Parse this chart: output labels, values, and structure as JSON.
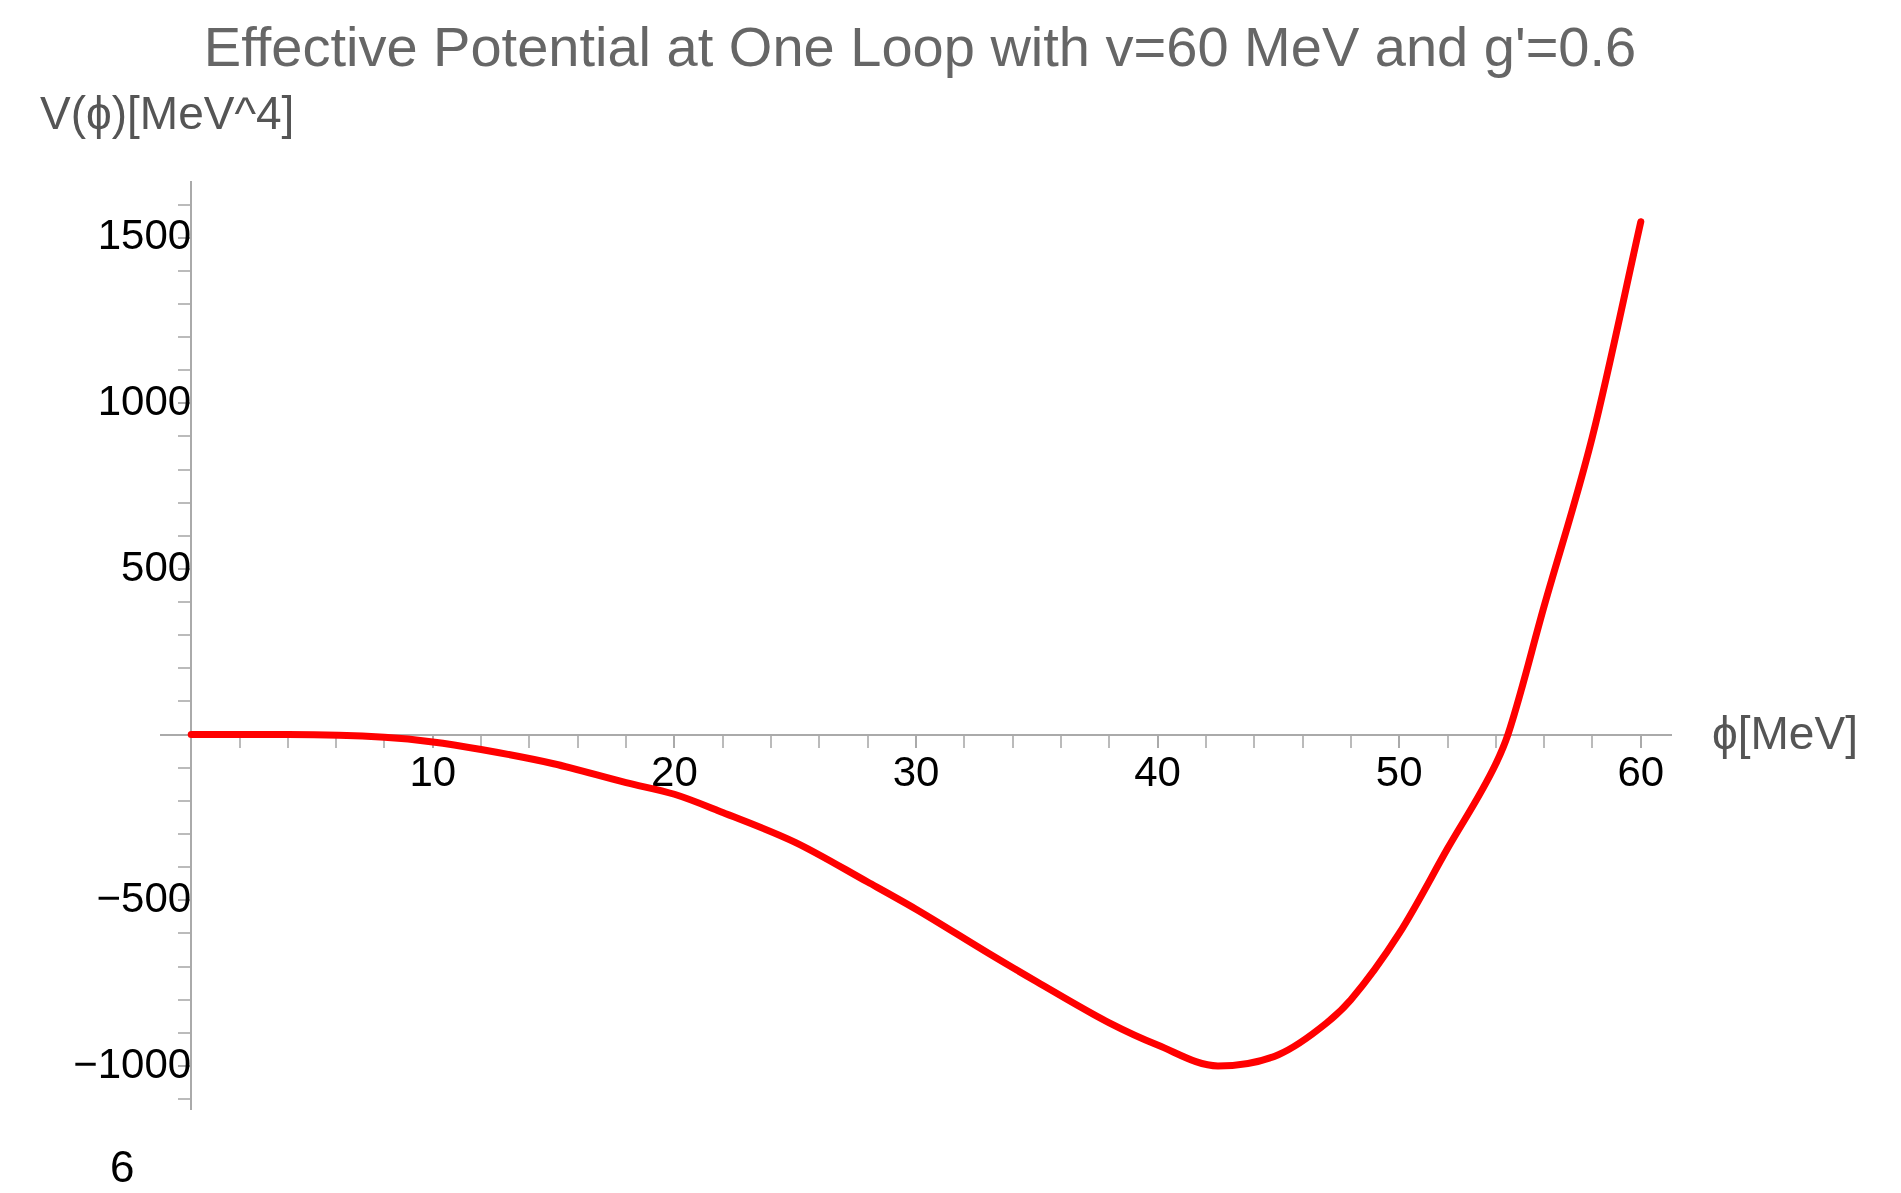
{
  "chart_data": {
    "type": "line",
    "title": "Effective Potential at One Loop with v=60 MeV and g'=0.6",
    "xlabel": "ϕ[MeV]",
    "ylabel": "V(ϕ)[MeV^4]",
    "annotations": [
      "6"
    ],
    "x": [
      0,
      4,
      8,
      10,
      12,
      15,
      18,
      20,
      22,
      25,
      28,
      30,
      33,
      35,
      38,
      40,
      42.5,
      45,
      47,
      48,
      50,
      52,
      54,
      54.5,
      56,
      58,
      60
    ],
    "series": [
      {
        "color": "#ff0000",
        "values": [
          0,
          0,
          -8,
          -22,
          -45,
          -88,
          -145,
          -180,
          -235,
          -325,
          -445,
          -527,
          -660,
          -746,
          -870,
          -937,
          -1000,
          -966,
          -870,
          -800,
          -600,
          -344,
          -88,
          0,
          388,
          900,
          1548
        ]
      }
    ],
    "xlim": [
      -1.25,
      61.25
    ],
    "ylim": [
      -1130,
      1668
    ],
    "xticks": [
      10,
      20,
      30,
      40,
      50,
      60,
      {
        "value": 2,
        "label": null
      },
      {
        "value": 4,
        "label": null
      },
      {
        "value": 6,
        "label": null
      },
      {
        "value": 8,
        "label": null
      },
      {
        "value": 12,
        "label": null
      },
      {
        "value": 14,
        "label": null
      },
      {
        "value": 16,
        "label": null
      },
      {
        "value": 18,
        "label": null
      },
      {
        "value": 22,
        "label": null
      },
      {
        "value": 24,
        "label": null
      },
      {
        "value": 26,
        "label": null
      },
      {
        "value": 28,
        "label": null
      },
      {
        "value": 32,
        "label": null
      },
      {
        "value": 34,
        "label": null
      },
      {
        "value": 36,
        "label": null
      },
      {
        "value": 38,
        "label": null
      },
      {
        "value": 42,
        "label": null
      },
      {
        "value": 44,
        "label": null
      },
      {
        "value": 46,
        "label": null
      },
      {
        "value": 48,
        "label": null
      },
      {
        "value": 52,
        "label": null
      },
      {
        "value": 54,
        "label": null
      },
      {
        "value": 56,
        "label": null
      },
      {
        "value": 58,
        "label": null
      }
    ],
    "yticks": [
      -1000,
      -500,
      500,
      1000,
      1500,
      {
        "value": -1100,
        "label": null
      },
      {
        "value": -900,
        "label": null
      },
      {
        "value": -800,
        "label": null
      },
      {
        "value": -700,
        "label": null
      },
      {
        "value": -600,
        "label": null
      },
      {
        "value": -400,
        "label": null
      },
      {
        "value": -300,
        "label": null
      },
      {
        "value": -200,
        "label": null
      },
      {
        "value": -100,
        "label": null
      },
      {
        "value": 100,
        "label": null
      },
      {
        "value": 200,
        "label": null
      },
      {
        "value": 300,
        "label": null
      },
      {
        "value": 400,
        "label": null
      },
      {
        "value": 600,
        "label": null
      },
      {
        "value": 700,
        "label": null
      },
      {
        "value": 800,
        "label": null
      },
      {
        "value": 900,
        "label": null
      },
      {
        "value": 1100,
        "label": null
      },
      {
        "value": 1200,
        "label": null
      },
      {
        "value": 1300,
        "label": null
      },
      {
        "value": 1400,
        "label": null
      },
      {
        "value": 1600,
        "label": null
      }
    ],
    "grid": false,
    "legend": false,
    "marker": "none",
    "line_style": "solid"
  }
}
